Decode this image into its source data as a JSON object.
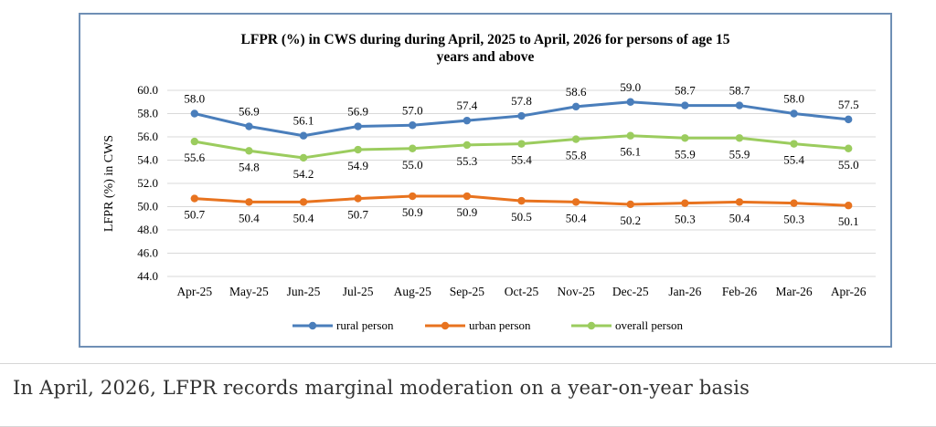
{
  "chart_data": {
    "type": "line",
    "title": "LFPR (%) in CWS during during April, 2025 to April, 2026 for persons of age 15 years and above",
    "title_lines": [
      "LFPR (%) in CWS during during April, 2025 to April, 2026 for persons of age 15",
      "years and above"
    ],
    "xlabel": "",
    "ylabel": "LFPR (%) in CWS",
    "ylim": [
      44.0,
      60.0
    ],
    "yticks": [
      "44.0",
      "46.0",
      "48.0",
      "50.0",
      "52.0",
      "54.0",
      "56.0",
      "58.0",
      "60.0"
    ],
    "grid": true,
    "legend_position": "bottom",
    "categories": [
      "Apr-25",
      "May-25",
      "Jun-25",
      "Jul-25",
      "Aug-25",
      "Sep-25",
      "Oct-25",
      "Nov-25",
      "Dec-25",
      "Jan-26",
      "Feb-26",
      "Mar-26",
      "Apr-26"
    ],
    "series": [
      {
        "name": "rural person",
        "color": "#4a7ebb",
        "label_position": "above",
        "values": [
          58.0,
          56.9,
          56.1,
          56.9,
          57.0,
          57.4,
          57.8,
          58.6,
          59.0,
          58.7,
          58.7,
          58.0,
          57.5
        ],
        "labels": [
          "58.0",
          "56.9",
          "56.1",
          "56.9",
          "57.0",
          "57.4",
          "57.8",
          "58.6",
          "59.0",
          "58.7",
          "58.7",
          "58.0",
          "57.5"
        ]
      },
      {
        "name": "urban person",
        "color": "#e8731f",
        "label_position": "below",
        "values": [
          50.7,
          50.4,
          50.4,
          50.7,
          50.9,
          50.9,
          50.5,
          50.4,
          50.2,
          50.3,
          50.4,
          50.3,
          50.1
        ],
        "labels": [
          "50.7",
          "50.4",
          "50.4",
          "50.7",
          "50.9",
          "50.9",
          "50.5",
          "50.4",
          "50.2",
          "50.3",
          "50.4",
          "50.3",
          "50.1"
        ]
      },
      {
        "name": "overall person",
        "color": "#9bcc5e",
        "label_position": "below",
        "values": [
          55.6,
          54.8,
          54.2,
          54.9,
          55.0,
          55.3,
          55.4,
          55.8,
          56.1,
          55.9,
          55.9,
          55.4,
          55.0
        ],
        "labels": [
          "55.6",
          "54.8",
          "54.2",
          "54.9",
          "55.0",
          "55.3",
          "55.4",
          "55.8",
          "56.1",
          "55.9",
          "55.9",
          "55.4",
          "55.0"
        ]
      }
    ]
  },
  "caption": "In April, 2026, LFPR records marginal moderation on a year-on-year basis"
}
